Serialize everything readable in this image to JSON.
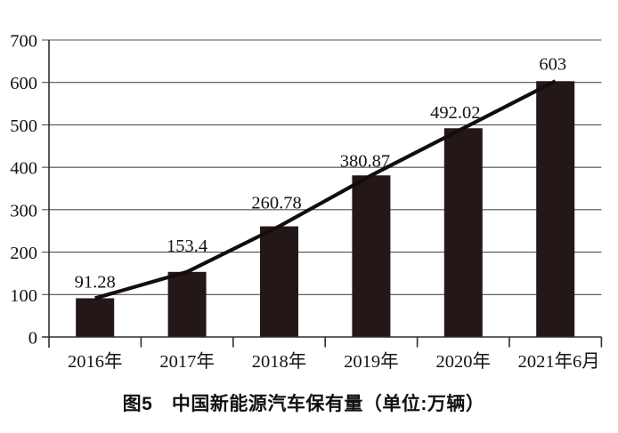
{
  "page": {
    "background": "#ffffff"
  },
  "figure": {
    "caption": "图5　中国新能源汽车保有量（单位:万辆）"
  },
  "chart_data": {
    "type": "bar",
    "overlay": "line",
    "title": "图5 中国新能源汽车保有量（单位:万辆）",
    "unit": "万辆",
    "categories": [
      "2016年",
      "2017年",
      "2018年",
      "2019年",
      "2020年",
      "2021年6月"
    ],
    "values": [
      91.28,
      153.4,
      260.78,
      380.87,
      492.02,
      603
    ],
    "value_labels": [
      "91.28",
      "153.4",
      "260.78",
      "380.87",
      "492.02",
      "603"
    ],
    "y_ticks": [
      700,
      600,
      500,
      400,
      300,
      200,
      100,
      0
    ],
    "ylim": [
      0,
      700
    ],
    "xlabel": "",
    "ylabel": "",
    "grid": "horizontal",
    "legend": "none",
    "bar_color": "#241717",
    "line_color": "#150d0d",
    "grid_color": "#4f4f4f",
    "axis_color": "#2e2e2e",
    "text_color": "#141414"
  }
}
